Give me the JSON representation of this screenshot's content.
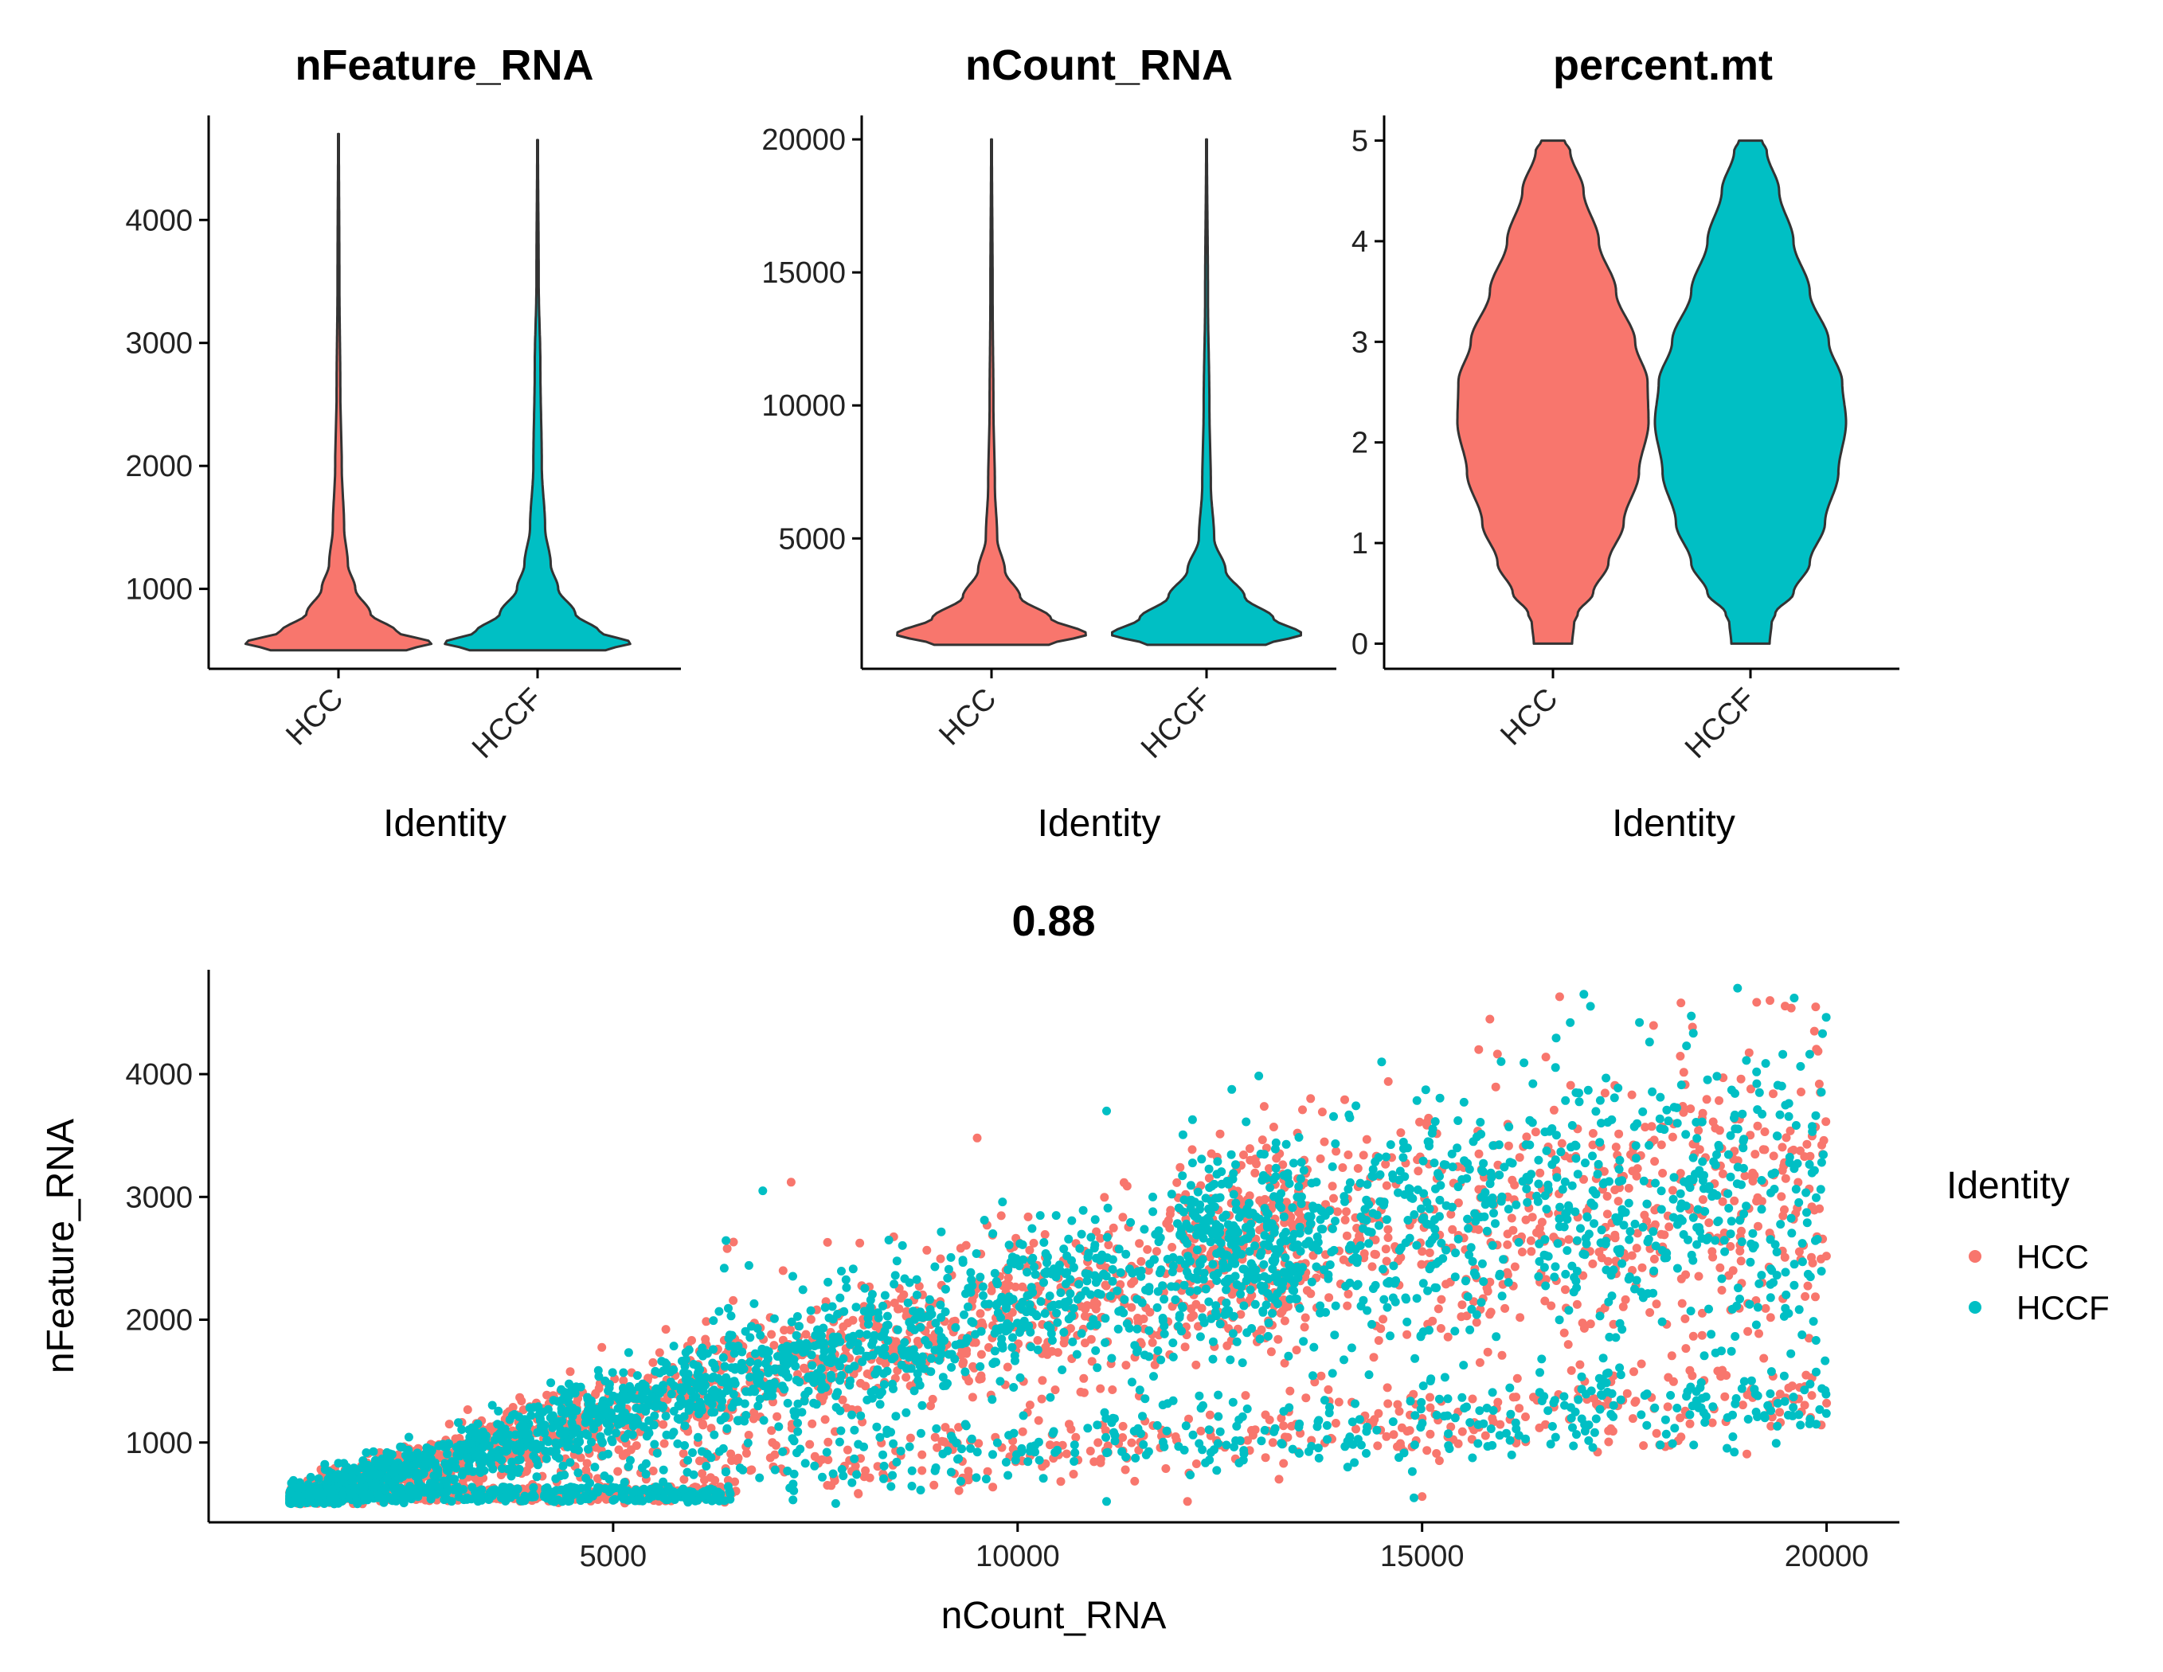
{
  "colors": {
    "HCC": "#F8766D",
    "HCCF": "#00BFC4",
    "axis": "#000000",
    "outline": "#333333"
  },
  "chart_data": [
    {
      "type": "violin",
      "title": "nFeature_RNA",
      "xlabel": "Identity",
      "ylabel": "",
      "categories": [
        "HCC",
        "HCCF"
      ],
      "ylim": [
        350,
        4850
      ],
      "yticks": [
        1000,
        2000,
        3000,
        4000
      ],
      "series": [
        {
          "name": "HCC",
          "min": 500,
          "max": 4700,
          "profile": [
            [
              500,
              0.72
            ],
            [
              560,
              1.0
            ],
            [
              650,
              0.62
            ],
            [
              800,
              0.34
            ],
            [
              1000,
              0.18
            ],
            [
              1200,
              0.1
            ],
            [
              1500,
              0.06
            ],
            [
              2000,
              0.035
            ],
            [
              2600,
              0.02
            ],
            [
              3500,
              0.01
            ],
            [
              4700,
              0.004
            ]
          ]
        },
        {
          "name": "HCCF",
          "min": 500,
          "max": 4650,
          "profile": [
            [
              500,
              0.72
            ],
            [
              560,
              1.0
            ],
            [
              650,
              0.66
            ],
            [
              800,
              0.4
            ],
            [
              1000,
              0.22
            ],
            [
              1200,
              0.14
            ],
            [
              1500,
              0.08
            ],
            [
              2000,
              0.045
            ],
            [
              2800,
              0.03
            ],
            [
              3500,
              0.012
            ],
            [
              4650,
              0.004
            ]
          ]
        }
      ]
    },
    {
      "type": "violin",
      "title": "nCount_RNA",
      "xlabel": "Identity",
      "ylabel": "",
      "categories": [
        "HCC",
        "HCCF"
      ],
      "ylim": [
        100,
        20900
      ],
      "yticks": [
        5000,
        10000,
        15000,
        20000
      ],
      "series": [
        {
          "name": "HCC",
          "min": 1000,
          "max": 20000,
          "profile": [
            [
              1000,
              0.6
            ],
            [
              1400,
              1.0
            ],
            [
              2000,
              0.62
            ],
            [
              2800,
              0.3
            ],
            [
              3800,
              0.14
            ],
            [
              5000,
              0.06
            ],
            [
              7000,
              0.035
            ],
            [
              10000,
              0.02
            ],
            [
              14000,
              0.012
            ],
            [
              20000,
              0.004
            ]
          ]
        },
        {
          "name": "HCCF",
          "min": 1000,
          "max": 20000,
          "profile": [
            [
              1000,
              0.62
            ],
            [
              1400,
              1.0
            ],
            [
              2000,
              0.7
            ],
            [
              2800,
              0.4
            ],
            [
              3800,
              0.2
            ],
            [
              5000,
              0.08
            ],
            [
              7000,
              0.045
            ],
            [
              10000,
              0.03
            ],
            [
              14000,
              0.015
            ],
            [
              20000,
              0.004
            ]
          ]
        }
      ]
    },
    {
      "type": "violin",
      "title": "percent.mt",
      "xlabel": "Identity",
      "ylabel": "",
      "categories": [
        "HCC",
        "HCCF"
      ],
      "ylim": [
        -0.25,
        5.25
      ],
      "yticks": [
        0,
        1,
        2,
        3,
        4,
        5
      ],
      "series": [
        {
          "name": "HCC",
          "min": 0,
          "max": 5,
          "profile": [
            [
              0,
              0.2
            ],
            [
              0.2,
              0.22
            ],
            [
              0.3,
              0.26
            ],
            [
              0.5,
              0.42
            ],
            [
              0.8,
              0.58
            ],
            [
              1.2,
              0.74
            ],
            [
              1.7,
              0.9
            ],
            [
              2.2,
              1.0
            ],
            [
              2.6,
              0.99
            ],
            [
              3.0,
              0.86
            ],
            [
              3.5,
              0.66
            ],
            [
              4.0,
              0.48
            ],
            [
              4.5,
              0.32
            ],
            [
              4.9,
              0.18
            ],
            [
              5.0,
              0.12
            ]
          ]
        },
        {
          "name": "HCCF",
          "min": 0,
          "max": 5,
          "profile": [
            [
              0,
              0.2
            ],
            [
              0.2,
              0.22
            ],
            [
              0.3,
              0.26
            ],
            [
              0.5,
              0.45
            ],
            [
              0.8,
              0.62
            ],
            [
              1.2,
              0.78
            ],
            [
              1.7,
              0.92
            ],
            [
              2.2,
              1.0
            ],
            [
              2.6,
              0.96
            ],
            [
              3.0,
              0.82
            ],
            [
              3.5,
              0.62
            ],
            [
              4.0,
              0.45
            ],
            [
              4.5,
              0.3
            ],
            [
              4.9,
              0.17
            ],
            [
              5.0,
              0.12
            ]
          ]
        }
      ]
    },
    {
      "type": "scatter",
      "title": "0.88",
      "xlabel": "nCount_RNA",
      "ylabel": "nFeature_RNA",
      "xlim": [
        0,
        20900
      ],
      "ylim": [
        350,
        4850
      ],
      "xticks": [
        5000,
        10000,
        15000,
        20000
      ],
      "yticks": [
        1000,
        2000,
        3000,
        4000
      ],
      "legend_title": "Identity",
      "legend_position": "right",
      "series": [
        {
          "name": "HCC"
        },
        {
          "name": "HCCF"
        }
      ],
      "density_bands": [
        {
          "x_range": [
            1000,
            13000
          ],
          "y_model": "upper",
          "description_values": [
            [
              1000,
              600
            ],
            [
              5000,
              1500
            ],
            [
              10000,
              2400
            ],
            [
              13000,
              2800
            ]
          ]
        },
        {
          "x_range": [
            4000,
            20000
          ],
          "y_model": "lower",
          "description_values": [
            [
              4000,
              600
            ],
            [
              10000,
              900
            ],
            [
              15000,
              1100
            ],
            [
              20000,
              1400
            ]
          ]
        },
        {
          "x_range": [
            13000,
            20000
          ],
          "y_model": "plateau",
          "description_values": [
            [
              13000,
              2700
            ],
            [
              16000,
              2800
            ],
            [
              20000,
              3000
            ]
          ]
        }
      ],
      "highlight_points": [
        [
          16700,
          4630
        ],
        [
          17000,
          4650
        ],
        [
          18200,
          4580
        ],
        [
          18900,
          4700
        ],
        [
          19300,
          4600
        ],
        [
          19600,
          4620
        ],
        [
          19850,
          4350
        ],
        [
          14500,
          4100
        ],
        [
          15700,
          4200
        ],
        [
          11100,
          3700
        ],
        [
          9500,
          3480
        ],
        [
          6850,
          3050
        ],
        [
          7200,
          3120
        ],
        [
          14900,
          550
        ],
        [
          15000,
          560
        ],
        [
          11100,
          520
        ],
        [
          12100,
          520
        ],
        [
          19950,
          4330
        ],
        [
          20000,
          1320
        ],
        [
          19800,
          2350
        ]
      ]
    }
  ]
}
